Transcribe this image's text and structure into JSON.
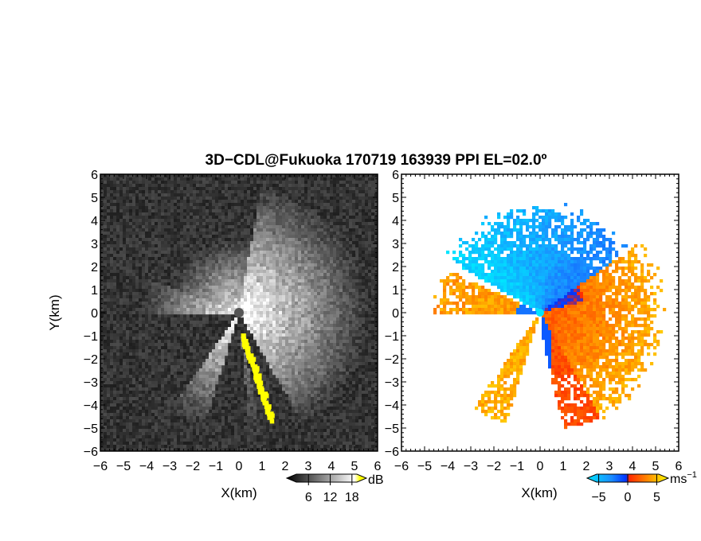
{
  "title": "3D−CDL@Fukuoka 170719 163939 PPI EL=02.0º",
  "chart_data": [
    {
      "type": "heatmap",
      "panel": "left",
      "xlabel": "X(km)",
      "ylabel": "Y(km)",
      "xlim": [
        -6,
        6
      ],
      "ylim": [
        -6,
        6
      ],
      "xticks": [
        "−6",
        "−5",
        "−4",
        "−3",
        "−2",
        "−1",
        "0",
        "1",
        "2",
        "3",
        "4",
        "5",
        "6"
      ],
      "yticks": [
        "−6",
        "−5",
        "−4",
        "−3",
        "−2",
        "−1",
        "0",
        "1",
        "2",
        "3",
        "4",
        "5",
        "6"
      ],
      "colorbar": {
        "unit": "dB",
        "ticks": [
          "6",
          "12",
          "18"
        ],
        "tick_values": [
          6,
          12,
          18
        ],
        "range": [
          0,
          22
        ],
        "colors": [
          "#000000",
          "#ffffff",
          "#ffff00"
        ]
      },
      "features": [
        {
          "name": "cloud edge band",
          "color": "#ffff00",
          "x": [
            0.05,
            1.3
          ],
          "y": [
            -1.0,
            -4.6
          ]
        },
        {
          "name": "radar site",
          "x": 0,
          "y": 0
        }
      ]
    },
    {
      "type": "heatmap",
      "panel": "right",
      "xlabel": "X(km)",
      "ylabel": "",
      "xlim": [
        -6,
        6
      ],
      "ylim": [
        -6,
        6
      ],
      "xticks": [
        "−6",
        "−5",
        "−4",
        "−3",
        "−2",
        "−1",
        "0",
        "1",
        "2",
        "3",
        "4",
        "5",
        "6"
      ],
      "yticks": [
        "−6",
        "−5",
        "−4",
        "−3",
        "−2",
        "−1",
        "0",
        "1",
        "2",
        "3",
        "4",
        "5",
        "6"
      ],
      "colorbar": {
        "unit": "ms",
        "unit_exponent": "−1",
        "ticks": [
          "−5",
          "0",
          "5"
        ],
        "tick_values": [
          -5,
          0,
          5
        ],
        "range": [
          -7,
          7
        ],
        "colors": [
          "#00e5ff",
          "#0050ff",
          "#ff2a00",
          "#ff9a00",
          "#ffff00"
        ]
      },
      "features": [
        {
          "name": "radar site",
          "x": 0,
          "y": 0
        }
      ]
    }
  ]
}
